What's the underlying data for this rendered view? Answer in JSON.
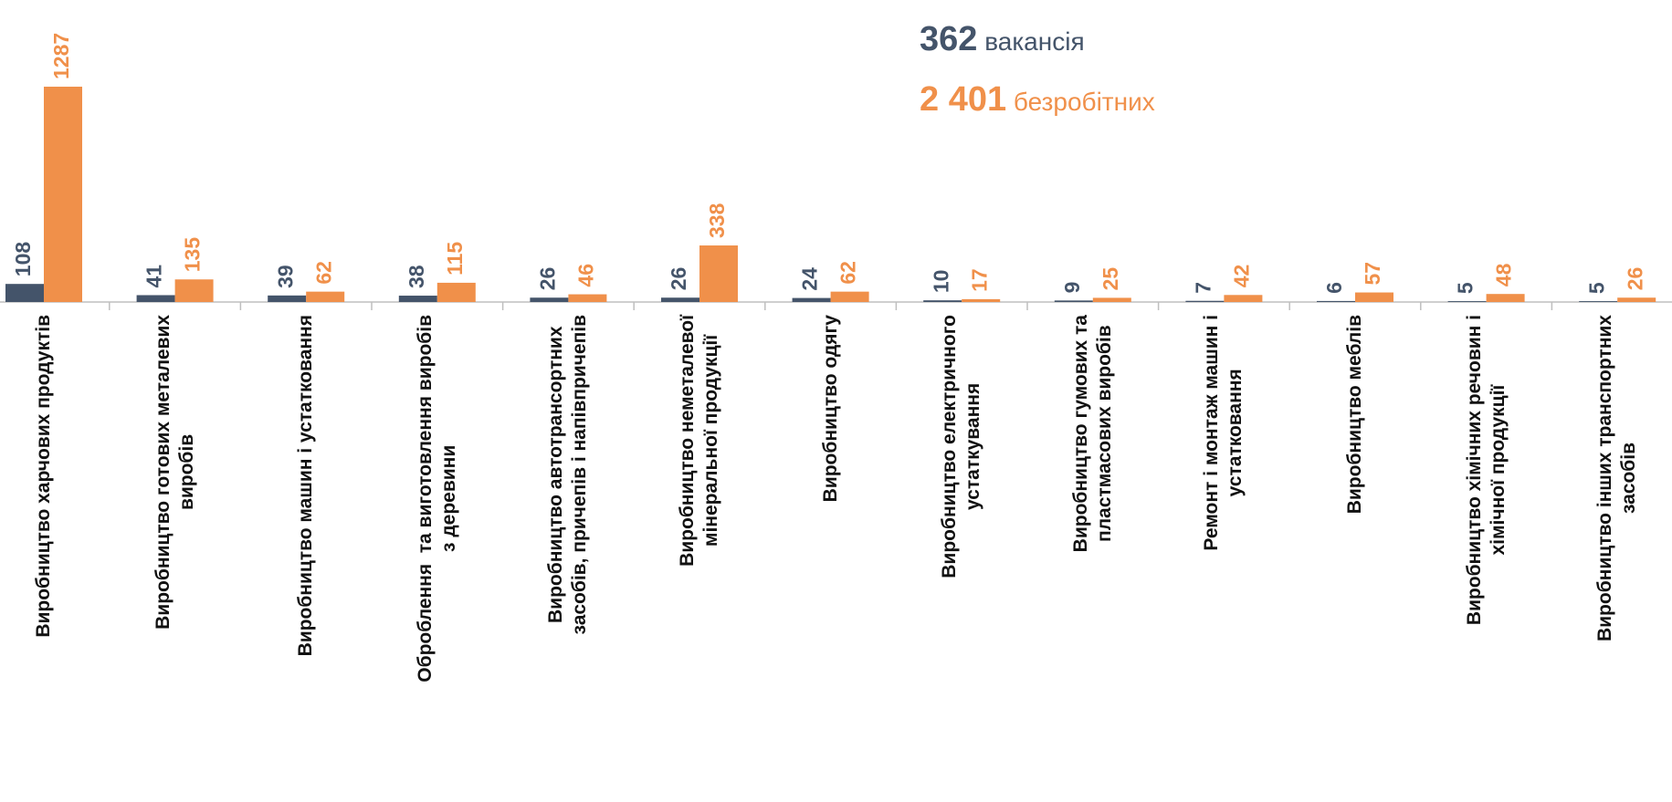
{
  "chart_data": {
    "type": "bar",
    "categories": [
      "Виробництво харчових продуктів",
      "Виробництво готових металевих\nвиробів",
      "Виробництво машин і устатковання",
      "Оброблення  та виготовлення виробів\nз деревини",
      "Виробництво автотрансортних\nзасобів, причепів і напівпричепів",
      "Виробництво неметалевої\nмінеральної продукції",
      "Виробництво одягу",
      "Виробництво електричного\nустаткування",
      "Виробництво гумових та\nпластмасових виробів",
      "Ремонт і монтаж машин і\nустатковання",
      "Виробництво меблів",
      "Виробництво хімічних речовин і\nхімічної продукції",
      "Виробництво інших транспортних\nзасобів"
    ],
    "series": [
      {
        "name": "вакансія",
        "color": "#44546a",
        "values": [
          108,
          41,
          39,
          38,
          26,
          26,
          24,
          10,
          9,
          7,
          6,
          5,
          5
        ]
      },
      {
        "name": "безробітних",
        "color": "#f0904a",
        "values": [
          1287,
          135,
          62,
          115,
          46,
          338,
          62,
          17,
          25,
          42,
          57,
          48,
          26
        ]
      }
    ],
    "annotations": [
      {
        "number": "362",
        "text": "вакансія"
      },
      {
        "number": "2 401",
        "text": "безробітних"
      }
    ]
  }
}
